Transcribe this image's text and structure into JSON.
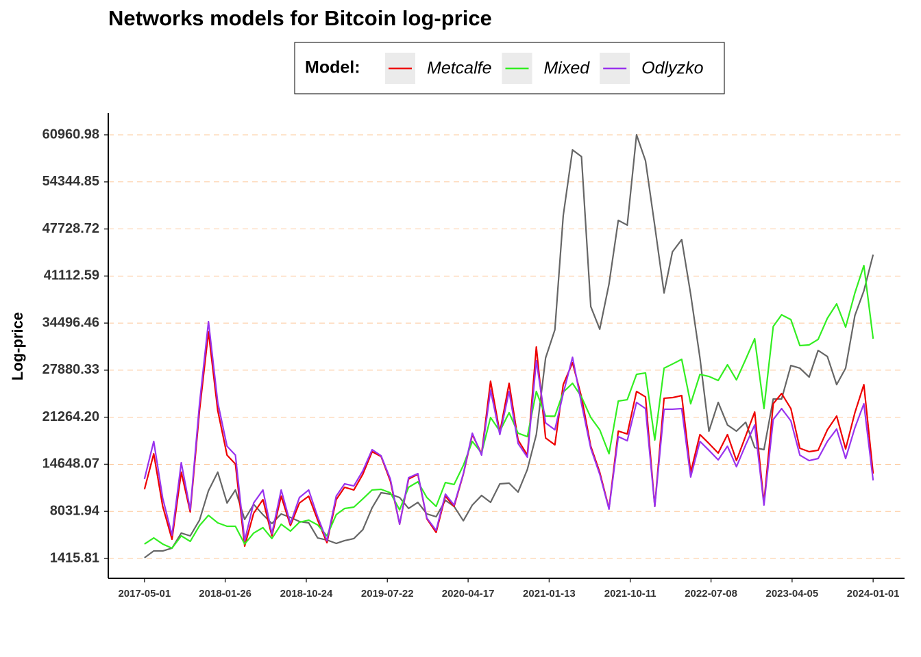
{
  "chart_data": {
    "type": "line",
    "title": "Networks models for Bitcoin log-price",
    "ylabel": "Log-price",
    "legend_title": "Model:",
    "grid": true,
    "xlim": [
      "2016-12-31",
      "2024-04-15"
    ],
    "xticks": [
      "2017-05-01",
      "2018-01-26",
      "2018-10-24",
      "2019-07-22",
      "2020-04-17",
      "2021-01-13",
      "2021-10-11",
      "2022-07-08",
      "2023-04-05",
      "2024-01-01"
    ],
    "ylim": [
      -1374,
      64039
    ],
    "yticks": [
      1415.81,
      8031.94,
      14648.07,
      {
        "value": 21264.2,
        "label": "21264.20"
      },
      27880.33,
      34496.46,
      41112.59,
      47728.72,
      54344.85,
      60960.98
    ],
    "x": [
      "2017-05-01",
      "2017-06-01",
      "2017-07-01",
      "2017-08-01",
      "2017-09-01",
      "2017-10-01",
      "2017-11-01",
      "2017-12-01",
      "2018-01-01",
      "2018-02-01",
      "2018-03-01",
      "2018-04-01",
      "2018-05-01",
      "2018-06-01",
      "2018-07-01",
      "2018-08-01",
      "2018-09-01",
      "2018-10-01",
      "2018-11-01",
      "2018-12-01",
      "2019-01-01",
      "2019-02-01",
      "2019-03-01",
      "2019-04-01",
      "2019-05-01",
      "2019-06-01",
      "2019-07-01",
      "2019-08-01",
      "2019-09-01",
      "2019-10-01",
      "2019-11-01",
      "2019-12-01",
      "2020-01-01",
      "2020-02-01",
      "2020-03-01",
      "2020-04-01",
      "2020-05-01",
      "2020-06-01",
      "2020-07-01",
      "2020-08-01",
      "2020-09-01",
      "2020-10-01",
      "2020-11-01",
      "2020-12-01",
      "2021-01-01",
      "2021-02-01",
      "2021-03-01",
      "2021-04-01",
      "2021-05-01",
      "2021-06-01",
      "2021-07-01",
      "2021-08-01",
      "2021-09-01",
      "2021-10-01",
      "2021-11-01",
      "2021-12-01",
      "2022-01-01",
      "2022-02-01",
      "2022-03-01",
      "2022-04-01",
      "2022-05-01",
      "2022-06-01",
      "2022-07-01",
      "2022-08-01",
      "2022-09-01",
      "2022-10-01",
      "2022-11-01",
      "2022-12-01",
      "2023-01-01",
      "2023-02-01",
      "2023-03-01",
      "2023-04-01",
      "2023-05-01",
      "2023-06-01",
      "2023-07-01",
      "2023-08-01",
      "2023-09-01",
      "2023-10-01",
      "2023-11-01",
      "2023-12-01",
      "2024-01-01"
    ],
    "series": [
      {
        "color": "#666666",
        "values": [
          1510,
          2470,
          2470,
          2860,
          4980,
          4590,
          6800,
          10940,
          13540,
          9210,
          11040,
          6900,
          9020,
          7570,
          6320,
          7670,
          7190,
          6610,
          6420,
          4300,
          4010,
          3530,
          3920,
          4210,
          5460,
          8540,
          10650,
          10460,
          9980,
          8440,
          9300,
          7670,
          7280,
          9590,
          8730,
          6710,
          8920,
          10270,
          9300,
          11900,
          12000,
          10750,
          13920,
          18830,
          29600,
          33550,
          49610,
          58850,
          57890,
          36820,
          33640,
          39990,
          48940,
          48270,
          60960,
          57310,
          48170,
          38740,
          44510,
          46240,
          38550,
          29600,
          19310,
          23350,
          20180,
          19310,
          20560,
          17000,
          16710,
          23830,
          23830,
          28540,
          28160,
          26910,
          30660,
          29800,
          25850,
          28160,
          35570,
          39030,
          44130
        ]
      },
      {
        "name": "Metcalfe",
        "color": "#ee0000",
        "values": [
          11130,
          16130,
          8730,
          4110,
          13540,
          7960,
          22200,
          33260,
          22200,
          15940,
          14690,
          3150,
          7770,
          9690,
          4590,
          10170,
          6030,
          9210,
          10170,
          6800,
          3630,
          9690,
          11420,
          11040,
          13250,
          16420,
          15750,
          12290,
          6230,
          12580,
          13250,
          6990,
          5070,
          10170,
          8730,
          13250,
          18830,
          16130,
          26330,
          19120,
          26040,
          18060,
          15940,
          31140,
          18350,
          17390,
          25850,
          28930,
          24120,
          17190,
          13540,
          8440,
          19310,
          18920,
          24890,
          24120,
          8730,
          23930,
          24020,
          24310,
          13540,
          18830,
          17580,
          16230,
          18830,
          15170,
          18640,
          22000,
          9210,
          23160,
          24600,
          22480,
          16900,
          16420,
          16620,
          19500,
          21430,
          16810,
          21910,
          25850,
          13340
        ]
      },
      {
        "name": "Mixed",
        "color": "#33ee22",
        "values": [
          3440,
          4300,
          3440,
          2860,
          4590,
          3820,
          6030,
          7480,
          6420,
          5940,
          5940,
          3440,
          4980,
          5750,
          4210,
          6230,
          5260,
          6510,
          6800,
          6130,
          4590,
          7570,
          8440,
          8630,
          9790,
          11040,
          11130,
          10650,
          8250,
          11420,
          12190,
          9980,
          8730,
          12090,
          11810,
          14500,
          17870,
          16230,
          21230,
          19310,
          21910,
          19020,
          18540,
          24890,
          21430,
          21430,
          24790,
          26040,
          24120,
          21230,
          19500,
          16130,
          23540,
          23730,
          27290,
          27490,
          18060,
          28160,
          28740,
          29410,
          23160,
          27290,
          27000,
          26430,
          28640,
          26520,
          29410,
          32300,
          22480,
          34030,
          35660,
          34990,
          31330,
          31430,
          32200,
          35180,
          37200,
          33930,
          38740,
          42590,
          32300
        ]
      },
      {
        "name": "Odlyzko",
        "color": "#9933ee",
        "values": [
          12580,
          17870,
          9880,
          4690,
          14880,
          8250,
          23160,
          34700,
          23350,
          17190,
          15940,
          3920,
          9210,
          11040,
          4880,
          11040,
          6320,
          9980,
          11040,
          7280,
          3920,
          10170,
          11900,
          11610,
          13730,
          16710,
          15850,
          12580,
          6230,
          12770,
          13340,
          7090,
          5360,
          10460,
          8920,
          13340,
          19020,
          15940,
          25080,
          18830,
          24890,
          17580,
          15650,
          29220,
          20460,
          19500,
          24600,
          29700,
          23160,
          16900,
          13250,
          8340,
          18540,
          17960,
          23350,
          22480,
          8730,
          22390,
          22390,
          22480,
          12860,
          17870,
          16620,
          15270,
          17190,
          14310,
          17390,
          20180,
          8920,
          20940,
          22480,
          20750,
          15940,
          15170,
          15460,
          17870,
          19600,
          15460,
          19790,
          23160,
          12380
        ]
      }
    ]
  }
}
